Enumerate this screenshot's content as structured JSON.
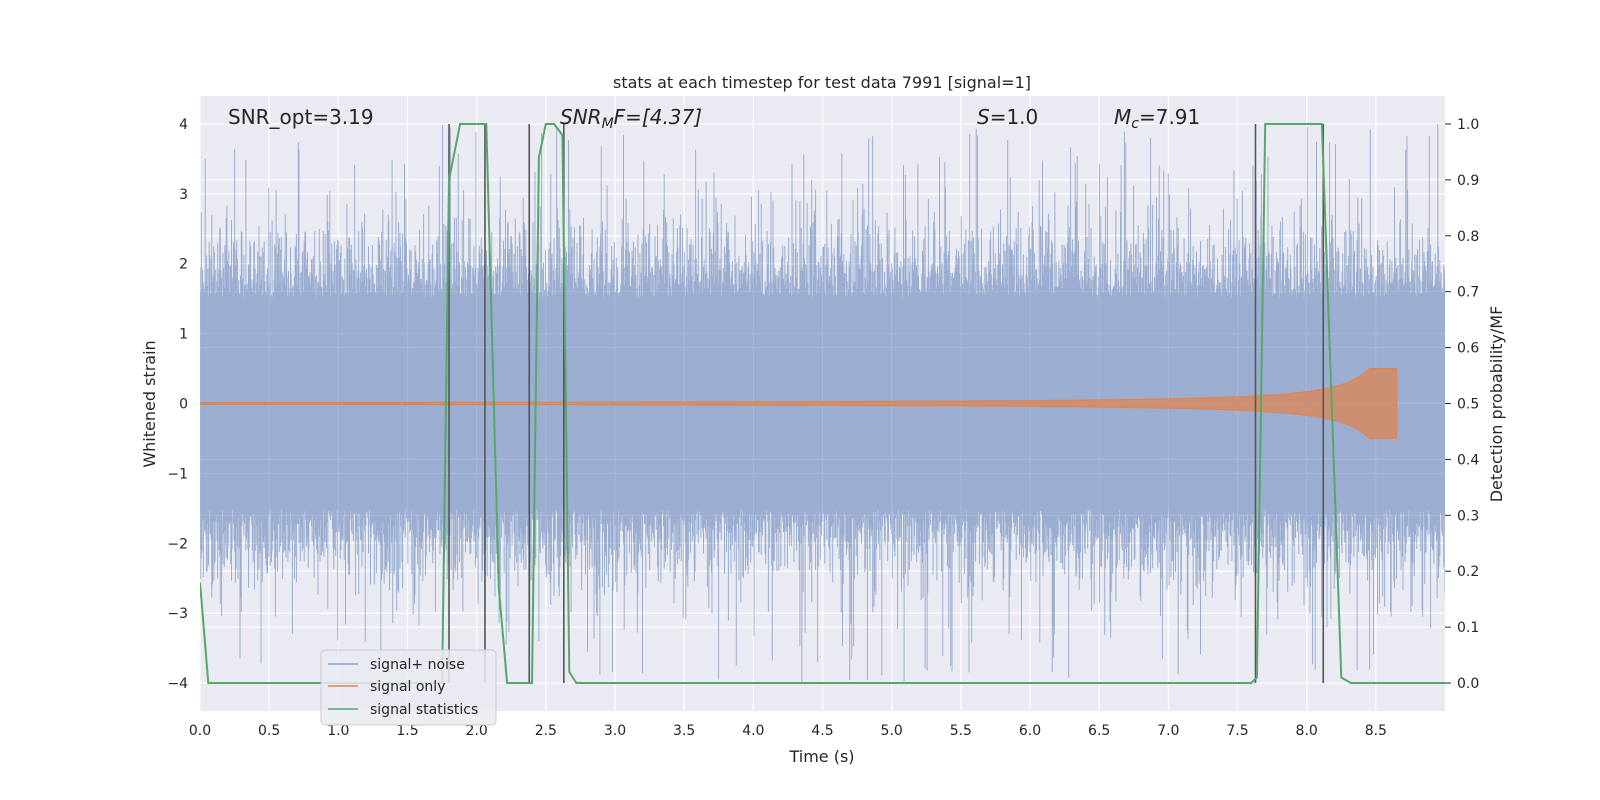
{
  "chart_data": {
    "type": "line",
    "title": "stats at each timestep for test data 7991 [signal=1]",
    "xlabel": "Time (s)",
    "ylabel_left": "Whitened strain",
    "ylabel_right": "Detection probability/MF",
    "xlim": [
      0.0,
      9.0
    ],
    "ylim_left": [
      -4.4,
      4.4
    ],
    "ylim_right": [
      -0.05,
      1.05
    ],
    "x_ticks": [
      "0.0",
      "0.5",
      "1.0",
      "1.5",
      "2.0",
      "2.5",
      "3.0",
      "3.5",
      "4.0",
      "4.5",
      "5.0",
      "5.5",
      "6.0",
      "6.5",
      "7.0",
      "7.5",
      "8.0",
      "8.5"
    ],
    "y_ticks_left": [
      "−4",
      "−3",
      "−2",
      "−1",
      "0",
      "1",
      "2",
      "3",
      "4"
    ],
    "y_ticks_right": [
      "0.0",
      "0.1",
      "0.2",
      "0.3",
      "0.4",
      "0.5",
      "0.6",
      "0.7",
      "0.8",
      "0.9",
      "1.0"
    ],
    "grid": true,
    "legend_position": "lower-left",
    "annotations": {
      "snr_opt": "SNR_opt=3.19",
      "snr_mf_main": "SNR",
      "snr_mf_sub": "M",
      "snr_mf_tail": "F=[4.37]",
      "s_main": "S",
      "s_tail": "=1.0",
      "mc_main": "M",
      "mc_sub": "c",
      "mc_tail": "=7.91"
    },
    "series": [
      {
        "name": "signal+ noise",
        "color": "#4c72b0",
        "kind": "noise band",
        "t_range": [
          0.0,
          9.0
        ],
        "typical_amplitude": 1.6,
        "peak_amplitude": 4.0,
        "axis": "left"
      },
      {
        "name": "signal only",
        "color": "#dd8452",
        "kind": "chirp",
        "t_range": [
          0.0,
          8.65
        ],
        "peak_amplitude": 0.5,
        "axis": "left"
      },
      {
        "name": "signal statistics",
        "color": "#55a868",
        "axis": "right",
        "x": [
          0.0,
          0.06,
          0.1,
          1.75,
          1.8,
          1.88,
          2.07,
          2.16,
          2.22,
          2.37,
          2.4,
          2.45,
          2.5,
          2.56,
          2.62,
          2.67,
          2.72,
          7.6,
          7.64,
          7.7,
          8.11,
          8.25,
          8.32,
          9.0
        ],
        "y": [
          0.18,
          0.0,
          0.0,
          0.0,
          0.9,
          1.0,
          1.0,
          0.17,
          0.0,
          0.0,
          0.0,
          0.94,
          1.0,
          1.0,
          0.98,
          0.02,
          0.0,
          0.0,
          0.01,
          1.0,
          1.0,
          0.01,
          0.0,
          0.0
        ]
      }
    ],
    "vertical_lines": [
      1.8,
      2.06,
      2.38,
      2.63,
      7.63,
      8.12
    ]
  }
}
